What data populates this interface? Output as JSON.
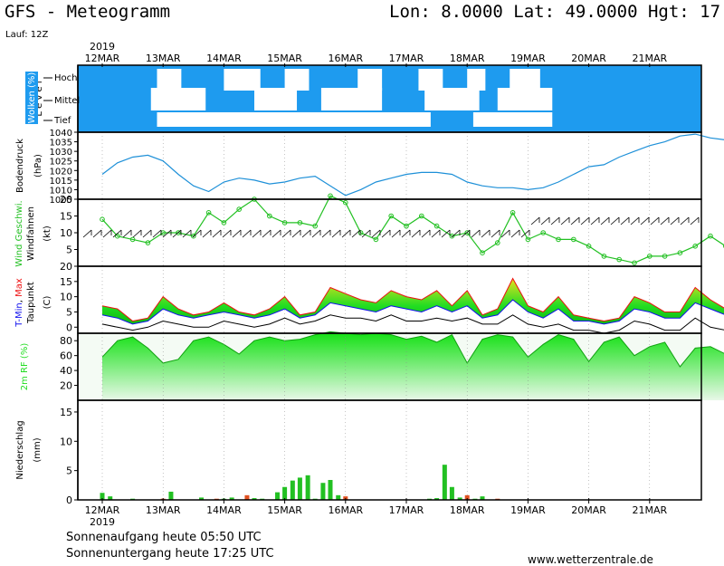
{
  "header": {
    "title": "GFS - Meteogramm",
    "location": "Lon: 8.0000 Lat: 49.0000 Hgt: 17",
    "run": "Lauf: 12Z"
  },
  "footer": {
    "sunrise": "Sonnenaufgang heute 05:50 UTC",
    "sunset": "Sonnenuntergang heute 17:25 UTC",
    "site": "www.wetterzentrale.de"
  },
  "colors": {
    "sky": "#1e9bef",
    "cloud": "#ffffff",
    "pressure": "#1e90d8",
    "wind": "#22c022",
    "tmin": "#1010ee",
    "tmax": "#ee1010",
    "rh": "#22dd22",
    "precip": "#22c022",
    "gridline": "#000000"
  },
  "chart_data": [
    {
      "type": "area",
      "panel": "clouds",
      "ylabel": "Wolken (%)",
      "ylabel2": "L e v e l",
      "levels": [
        "Hoch",
        "Mittel",
        "Tief"
      ],
      "days": [
        "12MAR",
        "13MAR",
        "14MAR",
        "15MAR",
        "16MAR",
        "17MAR",
        "18MAR",
        "19MAR",
        "20MAR",
        "21MAR"
      ],
      "year": "2019",
      "high_clouds": [
        [
          0.9,
          1.3
        ],
        [
          2.0,
          2.6
        ],
        [
          3.0,
          3.4
        ],
        [
          4.2,
          4.6
        ],
        [
          5.2,
          5.6
        ],
        [
          6.0,
          6.3
        ],
        [
          6.7,
          7.2
        ]
      ],
      "mid_clouds": [
        [
          0.8,
          1.7
        ],
        [
          2.5,
          3.2
        ],
        [
          3.6,
          4.6
        ],
        [
          5.3,
          6.2
        ],
        [
          6.5,
          7.4
        ]
      ],
      "low_clouds": [
        [
          0.9,
          5.4
        ],
        [
          6.1,
          7.4
        ]
      ]
    },
    {
      "type": "line",
      "panel": "pressure",
      "ylabel": "Bodendruck",
      "unit": "(hPa)",
      "ylim": [
        1005,
        1040
      ],
      "yticks": [
        1005,
        1010,
        1015,
        1020,
        1025,
        1030,
        1035,
        1040
      ],
      "x": [
        0,
        0.25,
        0.5,
        0.75,
        1,
        1.25,
        1.5,
        1.75,
        2,
        2.25,
        2.5,
        2.75,
        3,
        3.25,
        3.5,
        3.75,
        4,
        4.25,
        4.5,
        4.75,
        5,
        5.25,
        5.5,
        5.75,
        6,
        6.25,
        6.5,
        6.75,
        7,
        7.25,
        7.5,
        7.75,
        8,
        8.25,
        8.5,
        8.75,
        9,
        9.25,
        9.5,
        9.75,
        10,
        10.25,
        10.5
      ],
      "values": [
        1018,
        1024,
        1027,
        1028,
        1025,
        1018,
        1012,
        1009,
        1014,
        1016,
        1015,
        1013,
        1014,
        1016,
        1017,
        1012,
        1007,
        1010,
        1014,
        1016,
        1018,
        1019,
        1019,
        1018,
        1014,
        1012,
        1011,
        1011,
        1010,
        1011,
        1014,
        1018,
        1022,
        1023,
        1027,
        1030,
        1033,
        1035,
        1038,
        1039,
        1037,
        1036,
        1033
      ]
    },
    {
      "type": "line",
      "panel": "wind",
      "ylabel": "Wind Geschwi.",
      "ylabel2": "Windfahnen",
      "unit": "(kt)",
      "ylim": [
        0,
        20
      ],
      "yticks": [
        5,
        10,
        15,
        20
      ],
      "x": [
        0,
        0.25,
        0.5,
        0.75,
        1,
        1.25,
        1.5,
        1.75,
        2,
        2.25,
        2.5,
        2.75,
        3,
        3.25,
        3.5,
        3.75,
        4,
        4.25,
        4.5,
        4.75,
        5,
        5.25,
        5.5,
        5.75,
        6,
        6.25,
        6.5,
        6.75,
        7,
        7.25,
        7.5,
        7.75,
        8,
        8.25,
        8.5,
        8.75,
        9,
        9.25,
        9.5,
        9.75,
        10,
        10.25,
        10.5
      ],
      "values": [
        14,
        9,
        8,
        7,
        10,
        10,
        9,
        16,
        13,
        17,
        20,
        15,
        13,
        13,
        12,
        21,
        19,
        10,
        8,
        15,
        12,
        15,
        12,
        9,
        10,
        4,
        7,
        16,
        8,
        10,
        8,
        8,
        6,
        3,
        2,
        1,
        3,
        3,
        4,
        6,
        9,
        6,
        10
      ]
    },
    {
      "type": "area",
      "panel": "temperature",
      "ylabel": "T-Min, Max",
      "ylabel2": "Taupunkt",
      "unit": "(C)",
      "series_names": [
        "T-Min",
        "Max",
        "Taupunkt"
      ],
      "ylim": [
        -2,
        20
      ],
      "yticks": [
        0,
        5,
        10,
        15,
        20
      ],
      "x": [
        0,
        0.25,
        0.5,
        0.75,
        1,
        1.25,
        1.5,
        1.75,
        2,
        2.25,
        2.5,
        2.75,
        3,
        3.25,
        3.5,
        3.75,
        4,
        4.25,
        4.5,
        4.75,
        5,
        5.25,
        5.5,
        5.75,
        6,
        6.25,
        6.5,
        6.75,
        7,
        7.25,
        7.5,
        7.75,
        8,
        8.25,
        8.5,
        8.75,
        9,
        9.25,
        9.5,
        9.75,
        10,
        10.25,
        10.5
      ],
      "tmax": [
        7,
        6,
        2,
        3,
        10,
        6,
        4,
        5,
        8,
        5,
        4,
        6,
        10,
        4,
        5,
        13,
        11,
        9,
        8,
        12,
        10,
        9,
        12,
        7,
        12,
        4,
        6,
        16,
        7,
        5,
        10,
        4,
        3,
        2,
        3,
        10,
        8,
        5,
        5,
        13,
        9,
        6,
        14
      ],
      "tmin": [
        4,
        3,
        1,
        2,
        6,
        4,
        3,
        4,
        5,
        4,
        3,
        4,
        6,
        3,
        4,
        8,
        7,
        6,
        5,
        7,
        6,
        5,
        7,
        5,
        7,
        3,
        4,
        9,
        5,
        3,
        6,
        2,
        2,
        1,
        2,
        6,
        5,
        3,
        3,
        8,
        6,
        4,
        8
      ],
      "dewpoint": [
        1,
        0,
        -1,
        0,
        2,
        1,
        0,
        0,
        2,
        1,
        0,
        1,
        3,
        1,
        2,
        4,
        3,
        3,
        2,
        4,
        2,
        2,
        3,
        2,
        3,
        1,
        1,
        4,
        1,
        0,
        1,
        -1,
        -1,
        -2,
        -1,
        2,
        1,
        -1,
        -1,
        3,
        0,
        -1,
        2
      ]
    },
    {
      "type": "area",
      "panel": "humidity",
      "ylabel": "2m RF (%)",
      "ylim": [
        0,
        90
      ],
      "yticks": [
        20,
        40,
        60,
        80
      ],
      "x": [
        0,
        0.25,
        0.5,
        0.75,
        1,
        1.25,
        1.5,
        1.75,
        2,
        2.25,
        2.5,
        2.75,
        3,
        3.25,
        3.5,
        3.75,
        4,
        4.25,
        4.5,
        4.75,
        5,
        5.25,
        5.5,
        5.75,
        6,
        6.25,
        6.5,
        6.75,
        7,
        7.25,
        7.5,
        7.75,
        8,
        8.25,
        8.5,
        8.75,
        9,
        9.25,
        9.5,
        9.75,
        10,
        10.25,
        10.5
      ],
      "values": [
        58,
        80,
        85,
        70,
        50,
        55,
        80,
        85,
        75,
        62,
        80,
        85,
        80,
        82,
        88,
        92,
        90,
        88,
        90,
        88,
        82,
        86,
        78,
        88,
        50,
        82,
        88,
        85,
        58,
        75,
        88,
        82,
        52,
        78,
        85,
        60,
        72,
        78,
        45,
        70,
        72,
        62,
        48
      ]
    },
    {
      "type": "bar",
      "panel": "precipitation",
      "ylabel": "Niederschlag",
      "unit": "(mm)",
      "ylim": [
        0,
        17
      ],
      "yticks": [
        0,
        5,
        10,
        15
      ],
      "x": [
        0,
        0.13,
        0.5,
        1.0,
        1.13,
        1.63,
        1.88,
        2.0,
        2.13,
        2.38,
        2.5,
        2.63,
        2.88,
        3.0,
        3.13,
        3.25,
        3.38,
        3.5,
        3.63,
        3.75,
        3.88,
        4.0,
        5.38,
        5.5,
        5.63,
        5.75,
        5.88,
        6.0,
        6.13,
        6.25,
        6.5
      ],
      "values": [
        1.2,
        0.6,
        0.2,
        0.2,
        1.4,
        0.4,
        0.2,
        0.2,
        0.4,
        0.8,
        0.3,
        0.2,
        1.3,
        2.2,
        3.3,
        3.8,
        4.2,
        0.2,
        2.9,
        3.4,
        0.8,
        0.6,
        0.2,
        0.3,
        6.0,
        2.2,
        0.4,
        0.8,
        0.2,
        0.6,
        0.2
      ]
    }
  ]
}
